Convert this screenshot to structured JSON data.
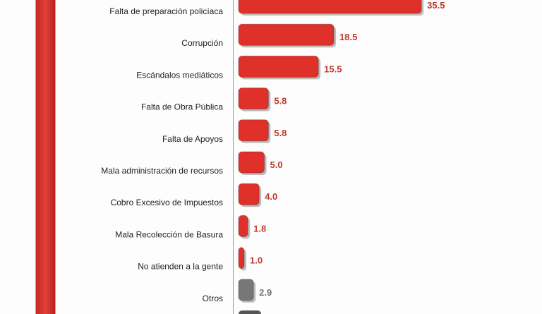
{
  "chart_data": {
    "type": "bar",
    "orientation": "horizontal",
    "categories": [
      "Falta de preparación policíaca",
      "Corrupción",
      "Escándalos mediáticos",
      "Falta de Obra Pública",
      "Falta de Apoyos",
      "Mala administración de recursos",
      "Cobro Excesivo de Impuestos",
      "Mala Recolección de Basura",
      "No atienden a la gente",
      "Otros"
    ],
    "values": [
      35.5,
      18.5,
      15.5,
      5.8,
      5.8,
      5.0,
      4.0,
      1.8,
      1.0,
      2.9
    ],
    "value_labels": [
      "35.5",
      "18.5",
      "15.5",
      "5.8",
      "5.8",
      "5.0",
      "4.0",
      "1.8",
      "1.0",
      "2.9"
    ],
    "colors": [
      "#e0302a",
      "#e0302a",
      "#e0302a",
      "#e0302a",
      "#e0302a",
      "#e0302a",
      "#e0302a",
      "#e0302a",
      "#e0302a",
      "#777777"
    ],
    "label_colors": [
      "#c0392b",
      "#c0392b",
      "#c0392b",
      "#c0392b",
      "#c0392b",
      "#c0392b",
      "#c0392b",
      "#c0392b",
      "#c0392b",
      "#777777"
    ],
    "title": "",
    "xlabel": "",
    "ylabel": ""
  }
}
